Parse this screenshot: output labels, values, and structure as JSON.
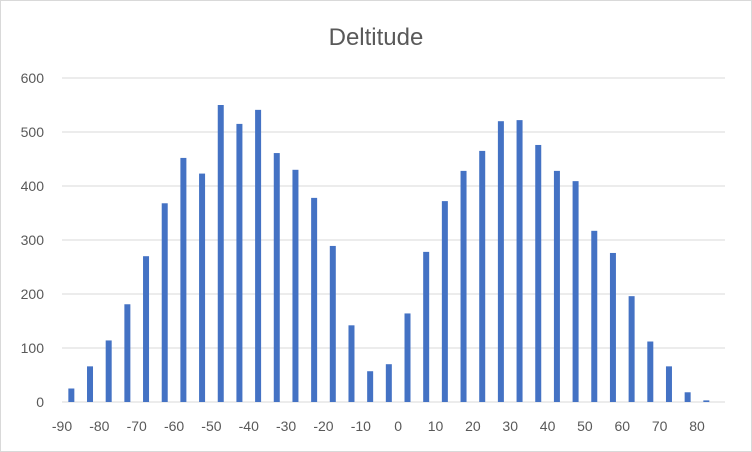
{
  "chart_data": {
    "type": "bar",
    "title": "Deltitude",
    "xlabel": "",
    "ylabel": "",
    "ylim": [
      0,
      600
    ],
    "y_ticks": [
      "0",
      "100",
      "200",
      "300",
      "400",
      "500",
      "600"
    ],
    "x_tick_labels": [
      "-90",
      "-80",
      "-70",
      "-60",
      "-50",
      "-40",
      "-30",
      "-20",
      "-10",
      "0",
      "10",
      "20",
      "30",
      "40",
      "50",
      "60",
      "70",
      "80"
    ],
    "grid": true,
    "legend": "none",
    "bar_color": "#4472c4",
    "x": [
      -87.5,
      -82.5,
      -77.5,
      -72.5,
      -67.5,
      -62.5,
      -57.5,
      -52.5,
      -47.5,
      -42.5,
      -37.5,
      -32.5,
      -27.5,
      -22.5,
      -17.5,
      -12.5,
      -7.5,
      -2.5,
      2.5,
      7.5,
      12.5,
      17.5,
      22.5,
      27.5,
      32.5,
      37.5,
      42.5,
      47.5,
      52.5,
      57.5,
      62.5,
      67.5,
      72.5,
      77.5,
      82.5
    ],
    "values": [
      25,
      66,
      114,
      181,
      270,
      368,
      452,
      423,
      550,
      515,
      541,
      461,
      430,
      378,
      289,
      142,
      57,
      70,
      164,
      278,
      372,
      428,
      465,
      520,
      522,
      476,
      428,
      409,
      317,
      276,
      196,
      112,
      66,
      18,
      3
    ]
  }
}
